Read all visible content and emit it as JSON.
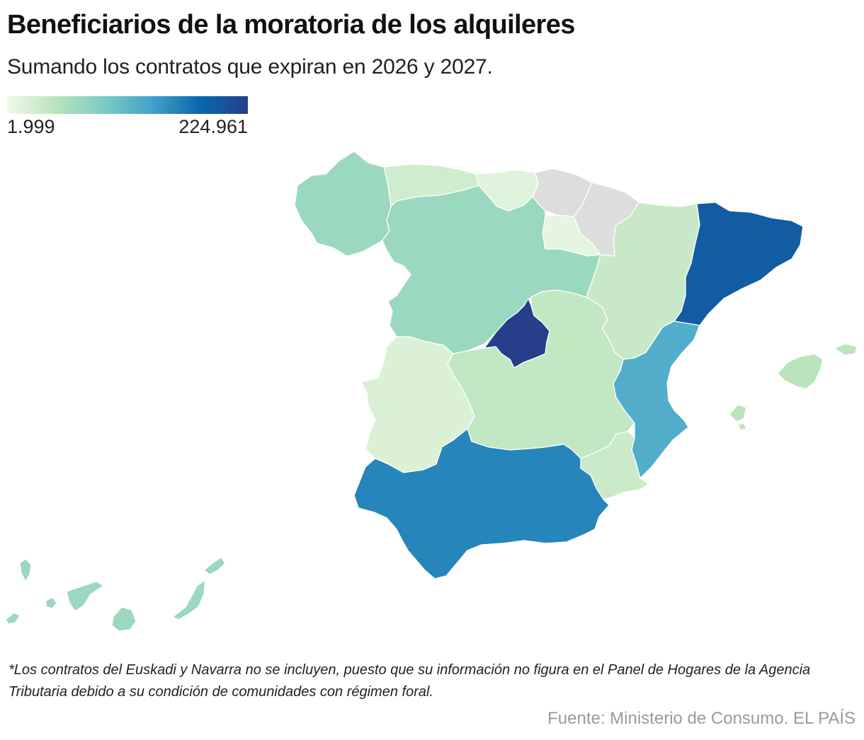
{
  "title": "Beneficiarios de la moratoria de los alquileres",
  "subtitle": "Sumando los contratos que expiran en 2026 y 2027.",
  "legend": {
    "min_label": "1.999",
    "max_label": "224.961",
    "min_value": 1999,
    "max_value": 224961,
    "color_stops": [
      "#f0f9e8",
      "#bae4bc",
      "#7bccc4",
      "#43a2ca",
      "#0868ac",
      "#253f8a"
    ]
  },
  "map": {
    "no_data_color": "#dddddd",
    "regions": [
      {
        "id": "galicia",
        "level": 0.3
      },
      {
        "id": "asturias",
        "level": 0.12
      },
      {
        "id": "cantabria",
        "level": 0.06
      },
      {
        "id": "pais-vasco",
        "level": null
      },
      {
        "id": "navarra",
        "level": null
      },
      {
        "id": "la-rioja",
        "level": 0.04
      },
      {
        "id": "castilla-y-leon",
        "level": 0.3
      },
      {
        "id": "aragon",
        "level": 0.15
      },
      {
        "id": "cataluna",
        "level": 0.86
      },
      {
        "id": "madrid",
        "level": 1.0
      },
      {
        "id": "castilla-la-mancha",
        "level": 0.17
      },
      {
        "id": "extremadura",
        "level": 0.08
      },
      {
        "id": "comunidad-valenciana",
        "level": 0.55
      },
      {
        "id": "murcia",
        "level": 0.14
      },
      {
        "id": "andalucia",
        "level": 0.7
      },
      {
        "id": "baleares",
        "level": 0.2
      },
      {
        "id": "canarias",
        "level": 0.3
      }
    ]
  },
  "note": "*Los contratos del Euskadi y Navarra no se incluyen, puesto que su información no figura en el Panel de Hogares de la Agencia Tributaria debido a su condición de comunidades con régimen foral.",
  "source": "Fuente: Ministerio de Consumo. EL PAÍS"
}
